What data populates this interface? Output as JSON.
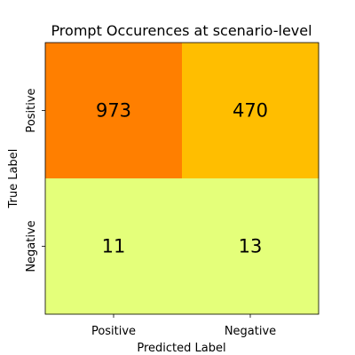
{
  "chart_data": {
    "type": "heatmap",
    "title": "Prompt Occurences at scenario-level",
    "xlabel": "Predicted Label",
    "ylabel": "True Label",
    "x_categories": [
      "Positive",
      "Negative"
    ],
    "y_categories": [
      "Positive",
      "Negative"
    ],
    "values": [
      [
        973,
        470
      ],
      [
        11,
        13
      ]
    ],
    "colormap": "Wistia",
    "cell_colors": [
      [
        "#ff7f00",
        "#ffbe00"
      ],
      [
        "#e4ff7a",
        "#e4ff7a"
      ]
    ],
    "grid": false,
    "legend": "none"
  }
}
